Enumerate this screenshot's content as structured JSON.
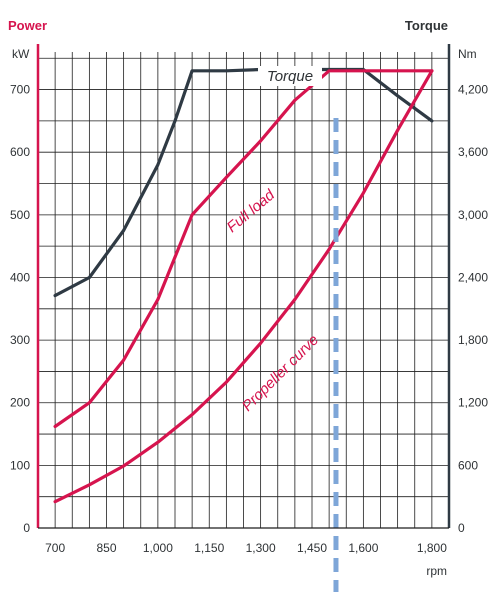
{
  "chart_data": {
    "type": "line",
    "headers": {
      "left": "Power",
      "right": "Torque"
    },
    "units": {
      "left": "kW",
      "right": "Nm",
      "x": "rpm"
    },
    "x_ticks": [
      700,
      850,
      1000,
      1150,
      1300,
      1450,
      1600,
      1800
    ],
    "x_tick_labels": [
      "700",
      "850",
      "1,000",
      "1,150",
      "1,300",
      "1,450",
      "1,600",
      "1,800"
    ],
    "xlim": [
      650,
      1850
    ],
    "y_left": {
      "ticks": [
        0,
        100,
        200,
        300,
        400,
        500,
        600,
        700
      ],
      "tick_labels": [
        "0",
        "100",
        "200",
        "300",
        "400",
        "500",
        "600",
        "700"
      ],
      "lim": [
        0,
        760
      ]
    },
    "y_right": {
      "ticks": [
        0,
        600,
        1200,
        1800,
        2400,
        3000,
        3600,
        4200
      ],
      "tick_labels": [
        "0",
        "600",
        "1,200",
        "1,800",
        "2,400",
        "3,000",
        "3,600",
        "4,200"
      ],
      "lim": [
        0,
        4560
      ]
    },
    "grid": true,
    "series": [
      {
        "name": "Torque",
        "axis": "right",
        "color": "#2f3a44",
        "points": [
          [
            700,
            2226
          ],
          [
            800,
            2400
          ],
          [
            900,
            2850
          ],
          [
            1000,
            3480
          ],
          [
            1050,
            3900
          ],
          [
            1100,
            4380
          ],
          [
            1200,
            4380
          ],
          [
            1300,
            4392
          ],
          [
            1400,
            4392
          ],
          [
            1500,
            4392
          ],
          [
            1600,
            4392
          ],
          [
            1700,
            4140
          ],
          [
            1800,
            3900
          ]
        ]
      },
      {
        "name": "Full load",
        "axis": "left",
        "color": "#d6144e",
        "points": [
          [
            700,
            162
          ],
          [
            800,
            200
          ],
          [
            900,
            268
          ],
          [
            1000,
            365
          ],
          [
            1100,
            500
          ],
          [
            1200,
            560
          ],
          [
            1300,
            618
          ],
          [
            1400,
            683
          ],
          [
            1500,
            730
          ],
          [
            1600,
            730
          ],
          [
            1700,
            730
          ],
          [
            1800,
            730
          ]
        ]
      },
      {
        "name": "Propeller curve",
        "axis": "left",
        "color": "#d6144e",
        "points": [
          [
            700,
            42
          ],
          [
            800,
            69
          ],
          [
            900,
            99
          ],
          [
            1000,
            137
          ],
          [
            1100,
            181
          ],
          [
            1200,
            233
          ],
          [
            1300,
            295
          ],
          [
            1400,
            365
          ],
          [
            1500,
            445
          ],
          [
            1600,
            535
          ],
          [
            1700,
            635
          ],
          [
            1800,
            730
          ]
        ]
      }
    ],
    "reference_line": {
      "x": 1520,
      "color": "#7ea6d8",
      "style": "dashed"
    },
    "annotations": [
      "Torque",
      "Full load",
      "Propeller curve"
    ]
  }
}
